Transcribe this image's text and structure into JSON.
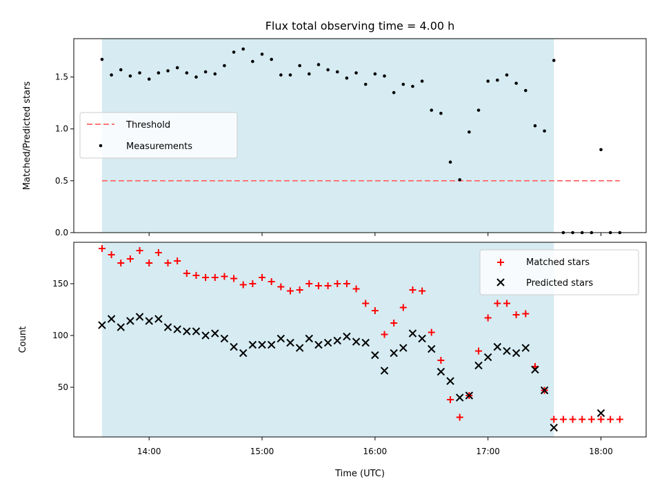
{
  "chart_data": [
    {
      "type": "scatter",
      "title": "Flux total observing time = 4.00 h",
      "xlabel": "",
      "ylabel": "Matched/Predicted stars",
      "xlim": [
        "13:20",
        "18:24"
      ],
      "ylim": [
        0,
        1.87
      ],
      "yticks": [
        0.0,
        0.5,
        1.0,
        1.5
      ],
      "ytick_labels": [
        "0.0",
        "0.5",
        "1.0",
        "1.5"
      ],
      "shaded_span": {
        "from": "13:35",
        "to": "17:35",
        "color": "#add8e6"
      },
      "threshold": {
        "name": "Threshold",
        "y": 0.5,
        "x_from": "13:35",
        "x_to": "18:10",
        "color": "#ff6666",
        "style": "dashed"
      },
      "legend": {
        "location": "center-left",
        "entries": [
          "Threshold",
          "Measurements"
        ]
      },
      "series": [
        {
          "name": "Measurements",
          "marker": "dot",
          "color": "#000000",
          "x": [
            "13:35",
            "13:40",
            "13:45",
            "13:50",
            "13:55",
            "14:00",
            "14:05",
            "14:10",
            "14:15",
            "14:20",
            "14:25",
            "14:30",
            "14:35",
            "14:40",
            "14:45",
            "14:50",
            "14:55",
            "15:00",
            "15:05",
            "15:10",
            "15:15",
            "15:20",
            "15:25",
            "15:30",
            "15:35",
            "15:40",
            "15:45",
            "15:50",
            "15:55",
            "16:00",
            "16:05",
            "16:10",
            "16:15",
            "16:20",
            "16:25",
            "16:30",
            "16:35",
            "16:40",
            "16:45",
            "16:50",
            "16:55",
            "17:00",
            "17:05",
            "17:10",
            "17:15",
            "17:20",
            "17:25",
            "17:30",
            "17:35",
            "17:40",
            "17:45",
            "17:50",
            "17:55",
            "18:00",
            "18:05",
            "18:10"
          ],
          "y": [
            1.67,
            1.52,
            1.57,
            1.51,
            1.54,
            1.48,
            1.54,
            1.56,
            1.59,
            1.54,
            1.5,
            1.55,
            1.53,
            1.61,
            1.74,
            1.77,
            1.65,
            1.72,
            1.67,
            1.52,
            1.52,
            1.61,
            1.53,
            1.62,
            1.57,
            1.55,
            1.49,
            1.54,
            1.43,
            1.53,
            1.51,
            1.35,
            1.43,
            1.41,
            1.46,
            1.18,
            1.15,
            0.68,
            0.51,
            0.97,
            1.18,
            1.46,
            1.47,
            1.52,
            1.44,
            1.37,
            1.03,
            0.98,
            1.66,
            0.0,
            0.0,
            0.0,
            0.0,
            0.8,
            0.0,
            0.0
          ]
        }
      ]
    },
    {
      "type": "scatter",
      "title": "",
      "xlabel": "Time (UTC)",
      "ylabel": "Count",
      "xlim": [
        "13:20",
        "18:24"
      ],
      "ylim": [
        2,
        190
      ],
      "yticks": [
        50,
        100,
        150
      ],
      "ytick_labels": [
        "50",
        "100",
        "150"
      ],
      "xticks": [
        "14:00",
        "15:00",
        "16:00",
        "17:00",
        "18:00"
      ],
      "xtick_labels": [
        "14:00",
        "15:00",
        "16:00",
        "17:00",
        "18:00"
      ],
      "shaded_span": {
        "from": "13:35",
        "to": "17:35",
        "color": "#add8e6"
      },
      "legend": {
        "location": "top-right",
        "entries": [
          "Matched stars",
          "Predicted stars"
        ]
      },
      "x": [
        "13:35",
        "13:40",
        "13:45",
        "13:50",
        "13:55",
        "14:00",
        "14:05",
        "14:10",
        "14:15",
        "14:20",
        "14:25",
        "14:30",
        "14:35",
        "14:40",
        "14:45",
        "14:50",
        "14:55",
        "15:00",
        "15:05",
        "15:10",
        "15:15",
        "15:20",
        "15:25",
        "15:30",
        "15:35",
        "15:40",
        "15:45",
        "15:50",
        "15:55",
        "16:00",
        "16:05",
        "16:10",
        "16:15",
        "16:20",
        "16:25",
        "16:30",
        "16:35",
        "16:40",
        "16:45",
        "16:50",
        "16:55",
        "17:00",
        "17:05",
        "17:10",
        "17:15",
        "17:20",
        "17:25",
        "17:30",
        "17:35",
        "17:40",
        "17:45",
        "17:50",
        "17:55",
        "18:00",
        "18:05",
        "18:10"
      ],
      "series": [
        {
          "name": "Matched stars",
          "marker": "plus",
          "color": "#ff0000",
          "values": [
            184,
            178,
            170,
            174,
            182,
            170,
            180,
            170,
            172,
            160,
            158,
            156,
            156,
            157,
            155,
            149,
            150,
            156,
            152,
            147,
            143,
            144,
            150,
            148,
            148,
            150,
            150,
            145,
            131,
            124,
            101,
            112,
            127,
            144,
            143,
            103,
            76,
            38,
            21,
            42,
            85,
            117,
            131,
            131,
            120,
            121,
            70,
            47,
            19,
            19,
            19,
            19,
            19,
            19,
            19,
            19
          ]
        },
        {
          "name": "Predicted stars",
          "marker": "x",
          "color": "#000000",
          "values": [
            110,
            116,
            108,
            114,
            118,
            114,
            116,
            108,
            106,
            104,
            104,
            100,
            102,
            97,
            89,
            83,
            91,
            91,
            91,
            97,
            93,
            88,
            97,
            91,
            93,
            95,
            99,
            94,
            93,
            81,
            66,
            83,
            88,
            102,
            97,
            87,
            65,
            56,
            40,
            42,
            71,
            79,
            89,
            85,
            83,
            88,
            67,
            47,
            11,
            null,
            null,
            null,
            null,
            25,
            null,
            null
          ]
        }
      ]
    }
  ]
}
